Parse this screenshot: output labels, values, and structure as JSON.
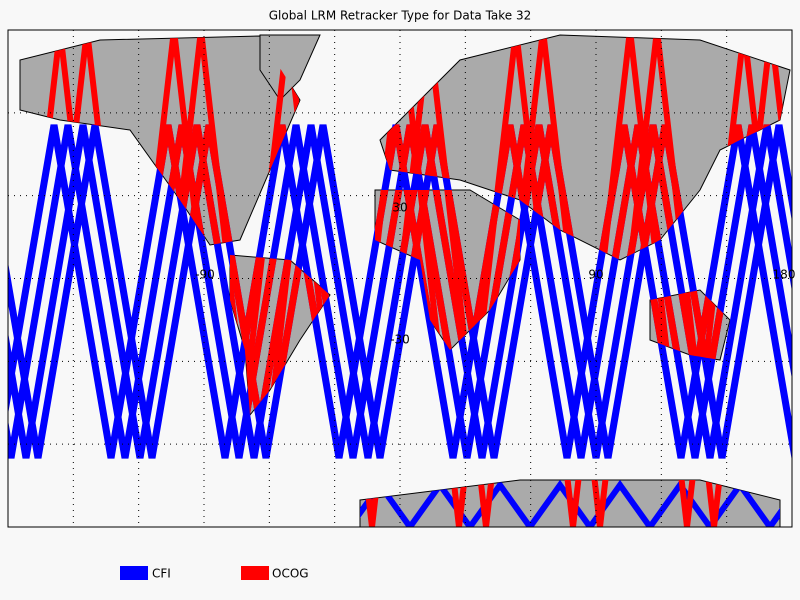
{
  "title": "Global LRM Retracker Type for Data Take 32",
  "legend": [
    {
      "label": "CFI",
      "color": "#0000ff"
    },
    {
      "label": "OCOG",
      "color": "#ff0000"
    }
  ],
  "grid_labels": {
    "lat": [
      "30",
      "-30"
    ],
    "lon": [
      "-90",
      "90",
      "180"
    ]
  }
}
